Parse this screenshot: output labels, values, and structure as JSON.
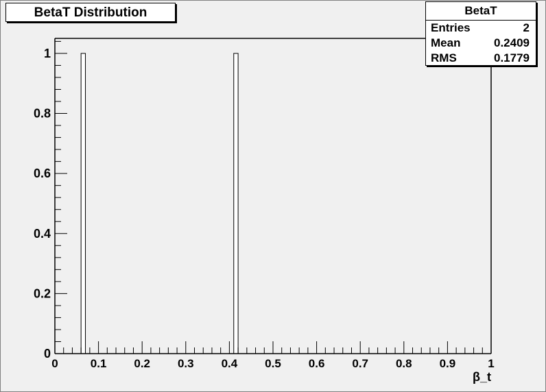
{
  "title": "BetaT Distribution",
  "stats": {
    "name": "BetaT",
    "rows": [
      {
        "label": "Entries",
        "value": "2"
      },
      {
        "label": "Mean",
        "value": "0.2409"
      },
      {
        "label": "RMS",
        "value": "0.1779"
      }
    ]
  },
  "chart_data": {
    "type": "bar",
    "title": "BetaT Distribution",
    "xlabel": "β_t",
    "ylabel": "",
    "xlim": [
      0,
      1
    ],
    "ylim": [
      0,
      1.05
    ],
    "x_ticks": [
      "0",
      "0.1",
      "0.2",
      "0.3",
      "0.4",
      "0.5",
      "0.6",
      "0.7",
      "0.8",
      "0.9",
      "1"
    ],
    "y_ticks": [
      "0",
      "0.2",
      "0.4",
      "0.6",
      "0.8",
      "1"
    ],
    "bins": [
      {
        "x0": 0.06,
        "x1": 0.07,
        "value": 1
      },
      {
        "x0": 0.41,
        "x1": 0.42,
        "value": 1
      }
    ],
    "grid": false,
    "legend": "top-right stats box"
  },
  "colors": {
    "background": "#f0f0f0",
    "frame": "#000000",
    "bar_fill": "#ffffff"
  }
}
